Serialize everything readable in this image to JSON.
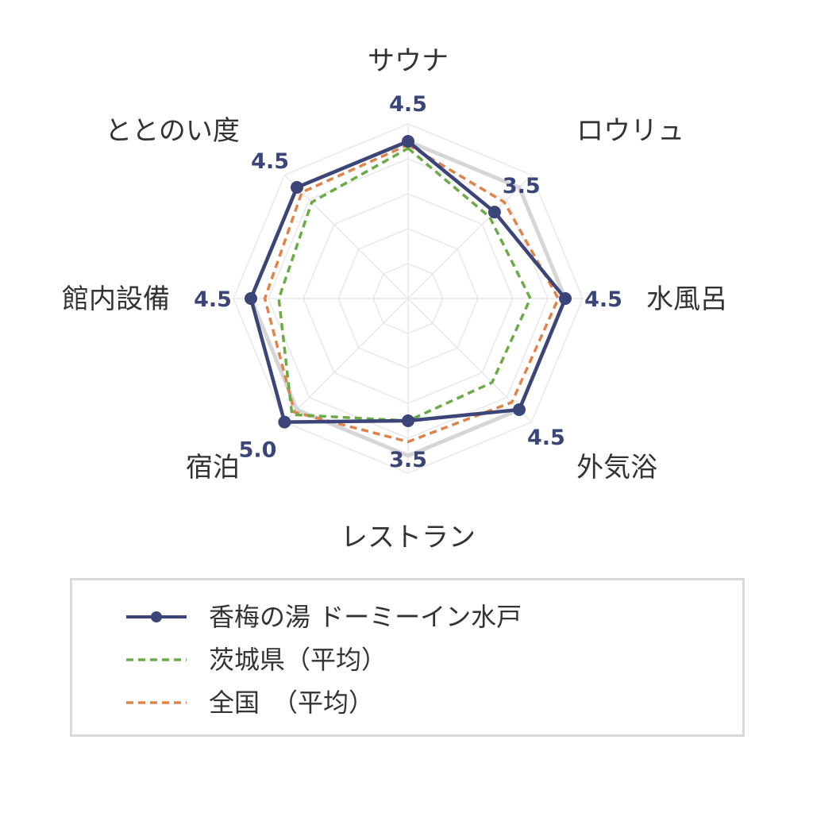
{
  "chart_data": {
    "type": "radar",
    "categories": [
      "サウナ",
      "ロウリュ",
      "水風呂",
      "外気浴",
      "レストラン",
      "宿泊",
      "館内設備",
      "ととのい度"
    ],
    "rmax": 5,
    "grid_levels": [
      1,
      2,
      3,
      4,
      5
    ],
    "grid": true,
    "legend_position": "bottom",
    "value_labels": [
      "4.5",
      "3.5",
      "4.5",
      "4.5",
      "3.5",
      "5.0",
      "4.5",
      "4.5"
    ],
    "series": [
      {
        "name": "香梅の湯 ドーミーイン水戸",
        "values": [
          4.5,
          3.5,
          4.5,
          4.5,
          3.5,
          5.0,
          4.5,
          4.5
        ],
        "color": "#3b4577",
        "style": "solid-marker"
      },
      {
        "name": "茨城県（平均）",
        "values": [
          4.3,
          3.3,
          3.5,
          3.4,
          3.5,
          4.7,
          3.7,
          3.9
        ],
        "color": "#6aab48",
        "style": "dashed"
      },
      {
        "name": "全国　（平均）",
        "values": [
          4.4,
          3.9,
          4.3,
          4.2,
          4.1,
          4.6,
          4.1,
          4.3
        ],
        "color": "#e0834a",
        "style": "dashed"
      }
    ],
    "max_outline_color": "#d6d6d6"
  }
}
